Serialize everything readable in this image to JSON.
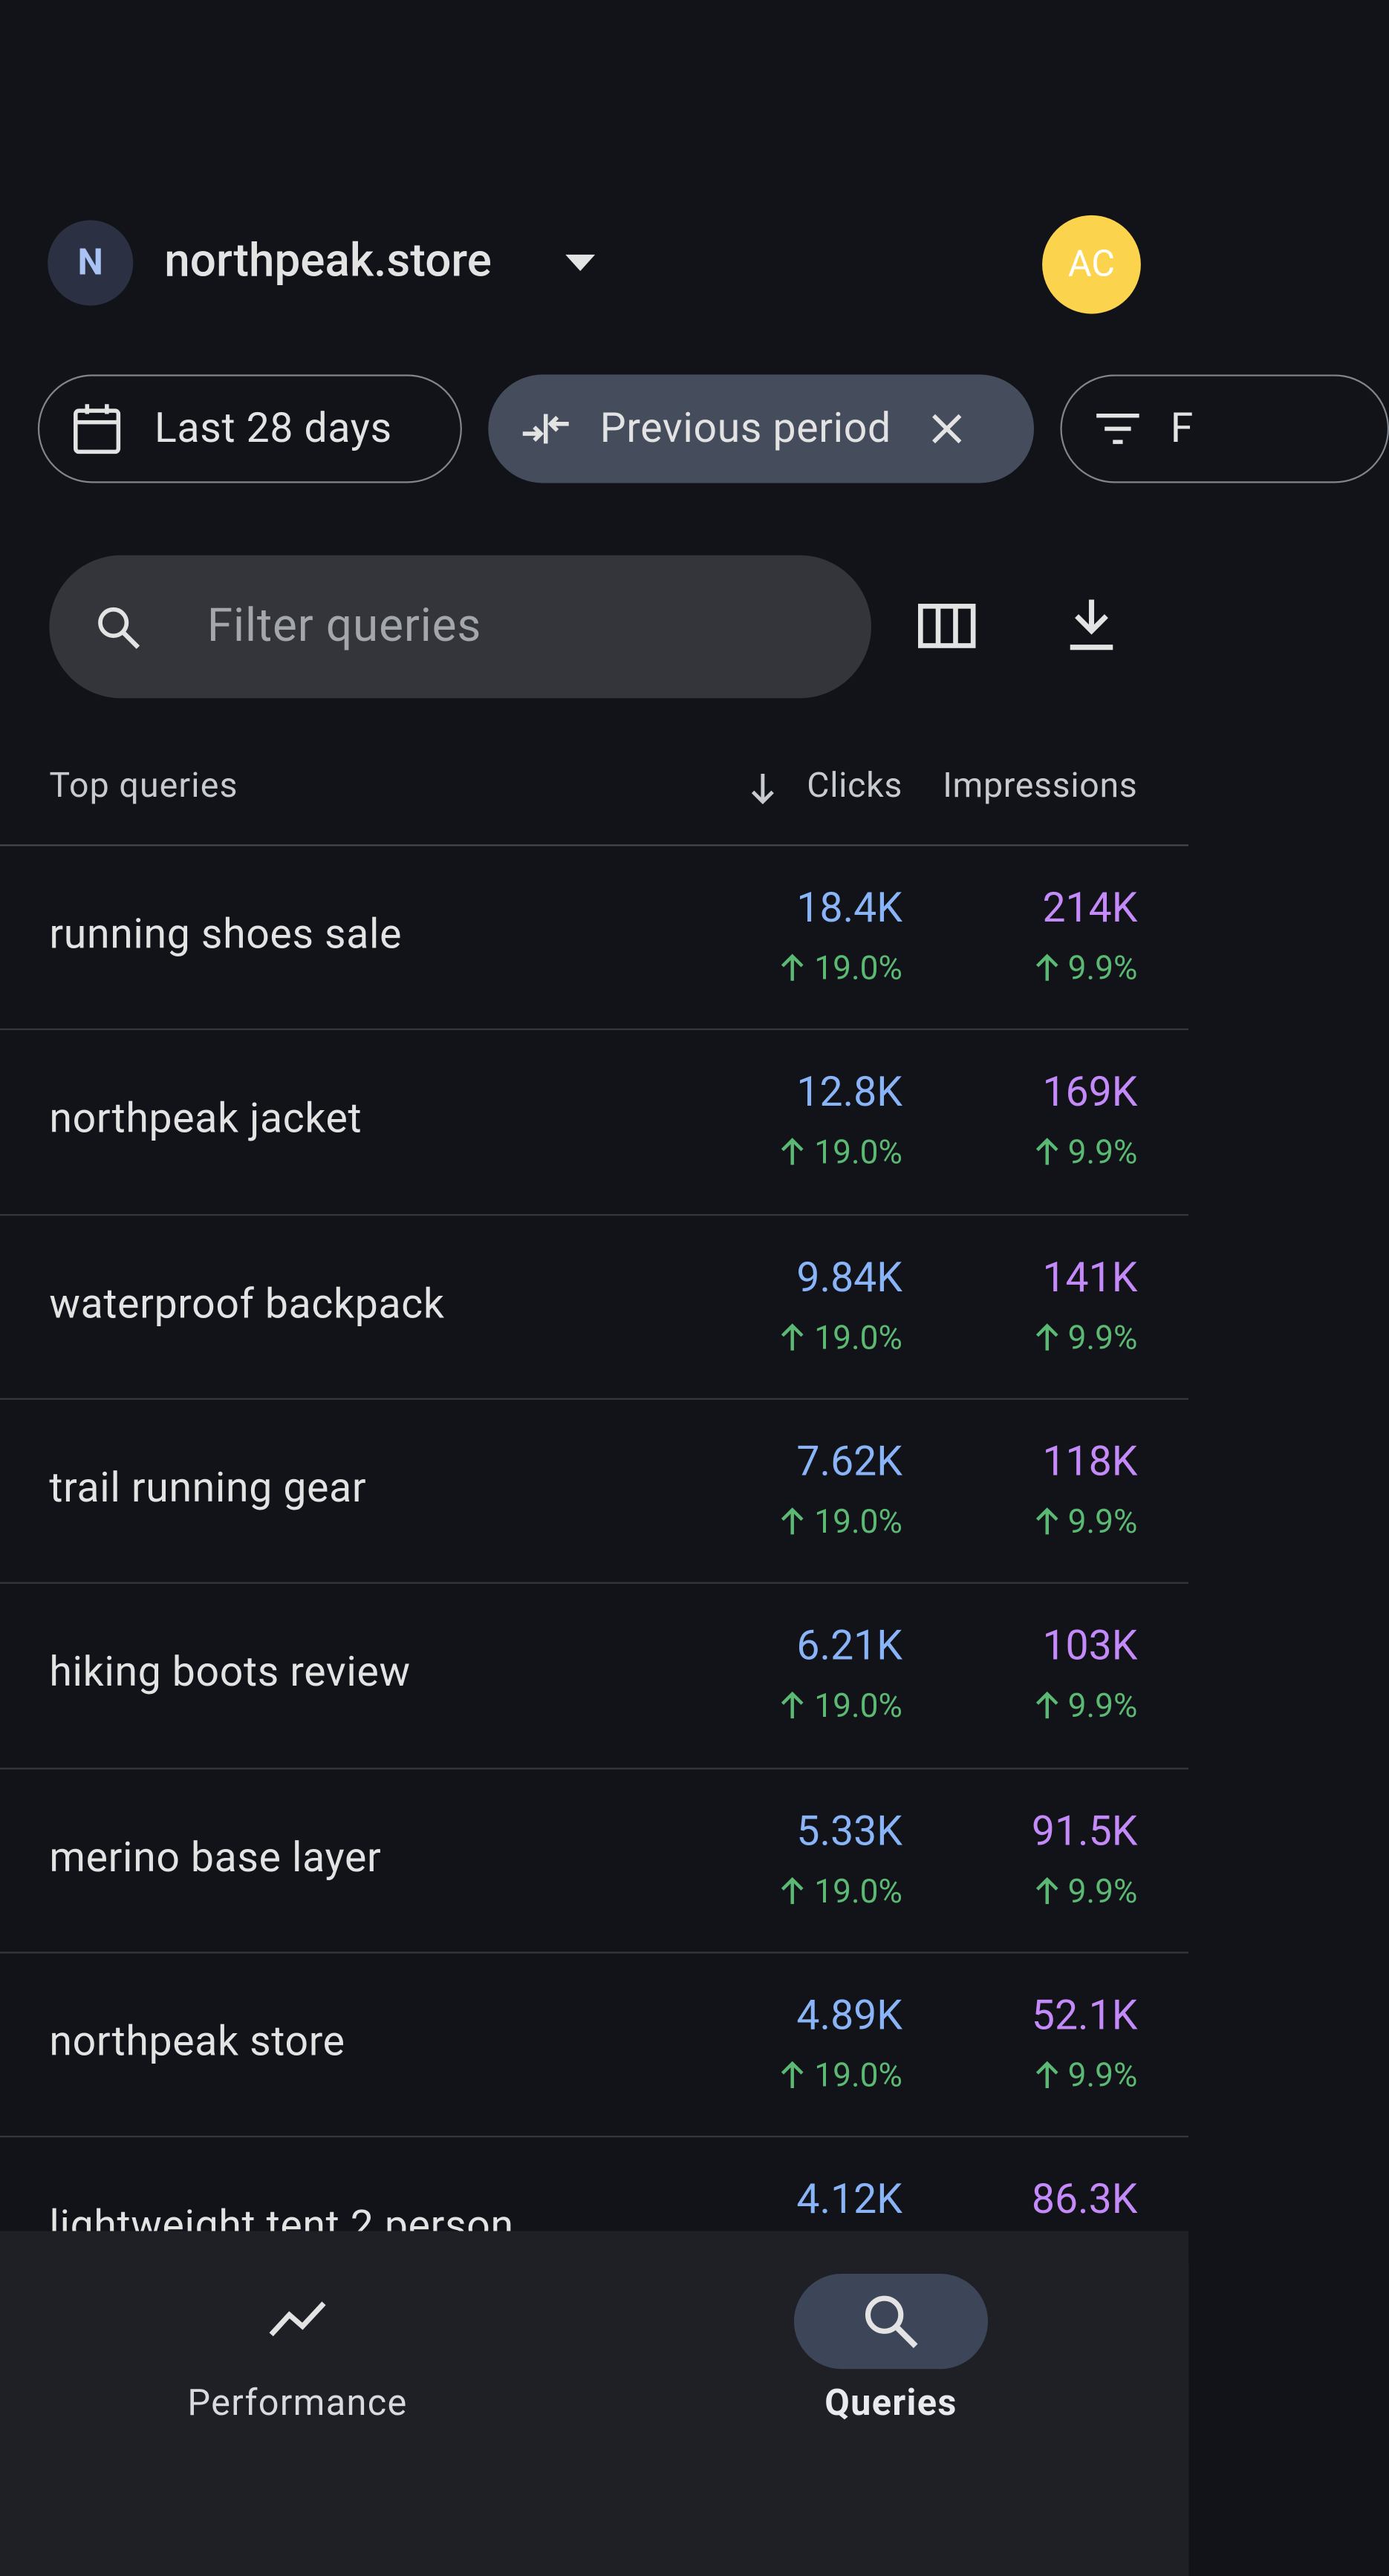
{
  "header": {
    "site_initial": "N",
    "site_name": "northpeak.store",
    "avatar": "AC"
  },
  "chips": [
    "Last 28 days",
    "Previous period",
    "F"
  ],
  "search": {
    "placeholder": "Filter queries"
  },
  "table": {
    "title": "Top queries",
    "columns": [
      "Clicks",
      "Impressions"
    ],
    "rows": [
      {
        "query": "running shoes sale",
        "clicks": "18.4K",
        "clicks_change": "19.0%",
        "impressions": "214K",
        "impressions_change": "9.9%"
      },
      {
        "query": "northpeak jacket",
        "clicks": "12.8K",
        "clicks_change": "19.0%",
        "impressions": "169K",
        "impressions_change": "9.9%"
      },
      {
        "query": "waterproof backpack",
        "clicks": "9.84K",
        "clicks_change": "19.0%",
        "impressions": "141K",
        "impressions_change": "9.9%"
      },
      {
        "query": "trail running gear",
        "clicks": "7.62K",
        "clicks_change": "19.0%",
        "impressions": "118K",
        "impressions_change": "9.9%"
      },
      {
        "query": "hiking boots review",
        "clicks": "6.21K",
        "clicks_change": "19.0%",
        "impressions": "103K",
        "impressions_change": "9.9%"
      },
      {
        "query": "merino base layer",
        "clicks": "5.33K",
        "clicks_change": "19.0%",
        "impressions": "91.5K",
        "impressions_change": "9.9%"
      },
      {
        "query": "northpeak store",
        "clicks": "4.89K",
        "clicks_change": "19.0%",
        "impressions": "52.1K",
        "impressions_change": "9.9%"
      },
      {
        "query": "lightweight tent 2 person",
        "clicks": "4.12K",
        "impressions": "86.3K"
      }
    ]
  },
  "nav": [
    "Performance",
    "Queries"
  ]
}
